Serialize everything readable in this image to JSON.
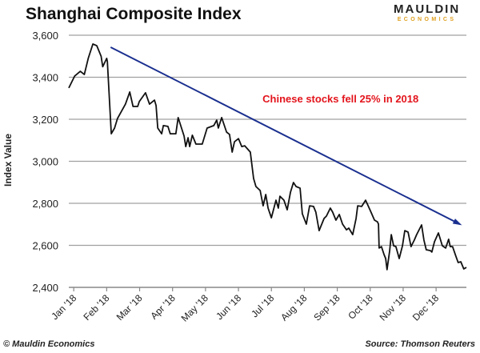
{
  "logo": {
    "line1": "MAULDIN",
    "line2": "ECONOMICS"
  },
  "footer": {
    "copyright": "© Mauldin Economics",
    "source": "Source: Thomson Reuters"
  },
  "colors": {
    "series": "#111111",
    "trend": "#1a2f8f",
    "annotation": "#e3141c",
    "grid": "#a0a0a0"
  },
  "chart_data": {
    "type": "line",
    "title": "Shanghai Composite Index",
    "xlabel": "",
    "ylabel": "Index Value",
    "ylim": [
      2400,
      3600
    ],
    "yticks": [
      2400,
      2600,
      2800,
      3000,
      3200,
      3400,
      3600
    ],
    "ytick_labels": [
      "2,400",
      "2,600",
      "2,800",
      "3,000",
      "3,200",
      "3,400",
      "3,600"
    ],
    "x_unit": "months since Jan 1 2018",
    "xlim": [
      -0.15,
      11.92
    ],
    "xtick_labels": [
      "Jan '18",
      "Feb '18",
      "Mar '18",
      "Apr '18",
      "May '18",
      "Jun '18",
      "Jul '18",
      "Aug '18",
      "Sep '18",
      "Oct '18",
      "Nov '18",
      "Dec '18"
    ],
    "grid": "horizontal",
    "series": [
      {
        "name": "Shanghai Composite Index",
        "points": [
          [
            -0.15,
            3349
          ],
          [
            0.03,
            3406
          ],
          [
            0.2,
            3428
          ],
          [
            0.32,
            3413
          ],
          [
            0.44,
            3490
          ],
          [
            0.58,
            3558
          ],
          [
            0.7,
            3550
          ],
          [
            0.83,
            3500
          ],
          [
            0.88,
            3450
          ],
          [
            1.0,
            3490
          ],
          [
            1.02,
            3475
          ],
          [
            1.14,
            3131
          ],
          [
            1.24,
            3158
          ],
          [
            1.33,
            3204
          ],
          [
            1.57,
            3272
          ],
          [
            1.7,
            3330
          ],
          [
            1.8,
            3261
          ],
          [
            1.94,
            3261
          ],
          [
            1.99,
            3284
          ],
          [
            2.18,
            3326
          ],
          [
            2.3,
            3272
          ],
          [
            2.45,
            3291
          ],
          [
            2.5,
            3265
          ],
          [
            2.55,
            3158
          ],
          [
            2.67,
            3131
          ],
          [
            2.72,
            3170
          ],
          [
            2.86,
            3166
          ],
          [
            2.93,
            3131
          ],
          [
            3.1,
            3131
          ],
          [
            3.17,
            3208
          ],
          [
            3.35,
            3120
          ],
          [
            3.4,
            3070
          ],
          [
            3.47,
            3112
          ],
          [
            3.52,
            3070
          ],
          [
            3.6,
            3124
          ],
          [
            3.71,
            3082
          ],
          [
            3.9,
            3082
          ],
          [
            4.05,
            3158
          ],
          [
            4.25,
            3170
          ],
          [
            4.34,
            3196
          ],
          [
            4.39,
            3158
          ],
          [
            4.49,
            3208
          ],
          [
            4.64,
            3139
          ],
          [
            4.73,
            3128
          ],
          [
            4.81,
            3044
          ],
          [
            4.88,
            3093
          ],
          [
            5.0,
            3108
          ],
          [
            5.1,
            3070
          ],
          [
            5.19,
            3074
          ],
          [
            5.36,
            3044
          ],
          [
            5.46,
            2918
          ],
          [
            5.53,
            2880
          ],
          [
            5.66,
            2861
          ],
          [
            5.75,
            2788
          ],
          [
            5.83,
            2842
          ],
          [
            5.9,
            2777
          ],
          [
            6.0,
            2731
          ],
          [
            6.14,
            2815
          ],
          [
            6.21,
            2777
          ],
          [
            6.26,
            2834
          ],
          [
            6.38,
            2815
          ],
          [
            6.48,
            2769
          ],
          [
            6.58,
            2853
          ],
          [
            6.67,
            2899
          ],
          [
            6.75,
            2880
          ],
          [
            6.87,
            2872
          ],
          [
            6.94,
            2750
          ],
          [
            7.06,
            2701
          ],
          [
            7.16,
            2788
          ],
          [
            7.28,
            2785
          ],
          [
            7.35,
            2758
          ],
          [
            7.45,
            2670
          ],
          [
            7.6,
            2728
          ],
          [
            7.67,
            2739
          ],
          [
            7.79,
            2777
          ],
          [
            7.86,
            2758
          ],
          [
            7.96,
            2720
          ],
          [
            8.06,
            2747
          ],
          [
            8.16,
            2701
          ],
          [
            8.28,
            2674
          ],
          [
            8.35,
            2682
          ],
          [
            8.47,
            2651
          ],
          [
            8.57,
            2728
          ],
          [
            8.62,
            2788
          ],
          [
            8.74,
            2785
          ],
          [
            8.86,
            2815
          ],
          [
            9.0,
            2766
          ],
          [
            9.13,
            2720
          ],
          [
            9.22,
            2712
          ],
          [
            9.25,
            2701
          ],
          [
            9.27,
            2587
          ],
          [
            9.34,
            2594
          ],
          [
            9.42,
            2556
          ],
          [
            9.47,
            2537
          ],
          [
            9.51,
            2484
          ],
          [
            9.59,
            2575
          ],
          [
            9.64,
            2651
          ],
          [
            9.71,
            2598
          ],
          [
            9.78,
            2594
          ],
          [
            9.88,
            2537
          ],
          [
            9.98,
            2598
          ],
          [
            10.05,
            2670
          ],
          [
            10.15,
            2663
          ],
          [
            10.24,
            2594
          ],
          [
            10.34,
            2625
          ],
          [
            10.41,
            2651
          ],
          [
            10.56,
            2697
          ],
          [
            10.63,
            2625
          ],
          [
            10.7,
            2579
          ],
          [
            10.83,
            2575
          ],
          [
            10.87,
            2568
          ],
          [
            10.95,
            2617
          ],
          [
            11.07,
            2659
          ],
          [
            11.19,
            2598
          ],
          [
            11.29,
            2587
          ],
          [
            11.38,
            2629
          ],
          [
            11.43,
            2594
          ],
          [
            11.5,
            2594
          ],
          [
            11.6,
            2549
          ],
          [
            11.67,
            2518
          ],
          [
            11.75,
            2522
          ],
          [
            11.84,
            2488
          ],
          [
            11.92,
            2495
          ]
        ]
      }
    ],
    "trend_arrow": {
      "from": [
        1.12,
        3543
      ],
      "to": [
        11.72,
        2701
      ]
    },
    "annotations": [
      {
        "text": "Chinese stocks fell 25% in 2018",
        "at": [
          8.1,
          3280
        ]
      }
    ]
  }
}
